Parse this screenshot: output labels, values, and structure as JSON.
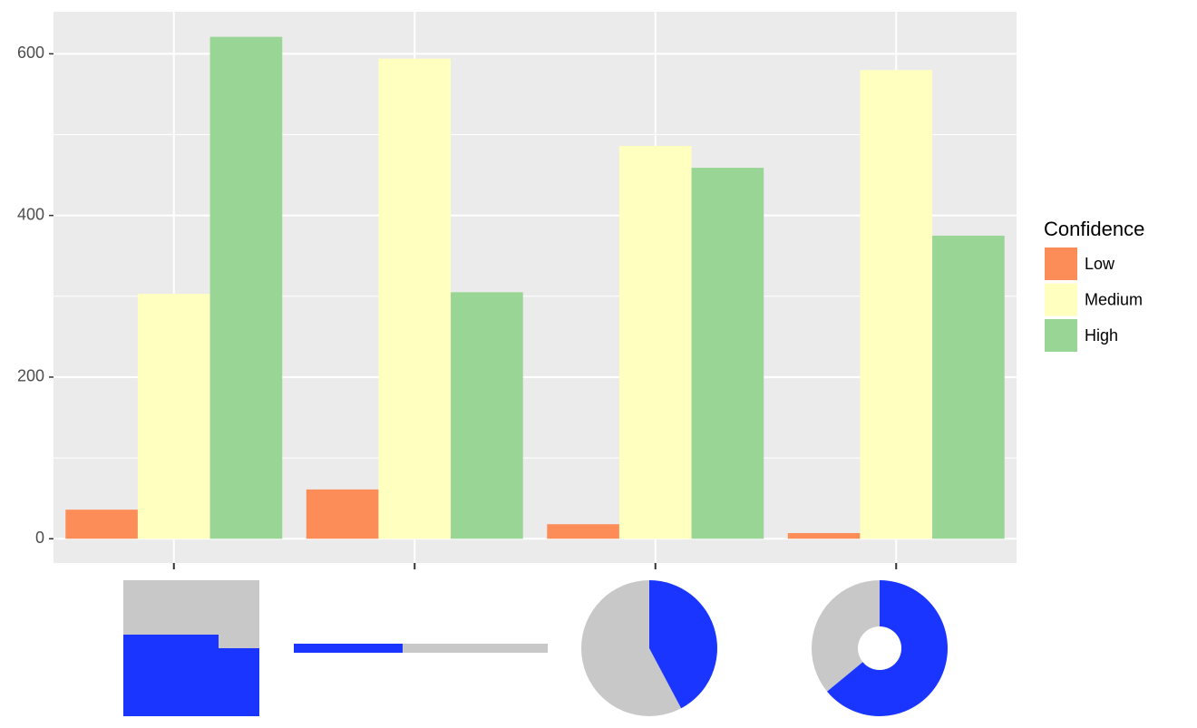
{
  "chart_data": {
    "type": "bar",
    "categories": [
      null,
      null,
      null,
      null
    ],
    "series": [
      {
        "name": "Low",
        "color": "#fc8d59",
        "values": [
          36,
          61,
          18,
          7
        ]
      },
      {
        "name": "Medium",
        "color": "#ffffbf",
        "values": [
          303,
          594,
          486,
          580
        ]
      },
      {
        "name": "High",
        "color": "#99d594",
        "values": [
          621,
          305,
          459,
          375
        ]
      }
    ],
    "ylim": [
      -30,
      652
    ],
    "yticks": [
      0,
      200,
      400,
      600
    ],
    "minor_grid": [
      100,
      300,
      500
    ],
    "grid": true,
    "legend_title": "Confidence",
    "legend_position": "right"
  }
}
